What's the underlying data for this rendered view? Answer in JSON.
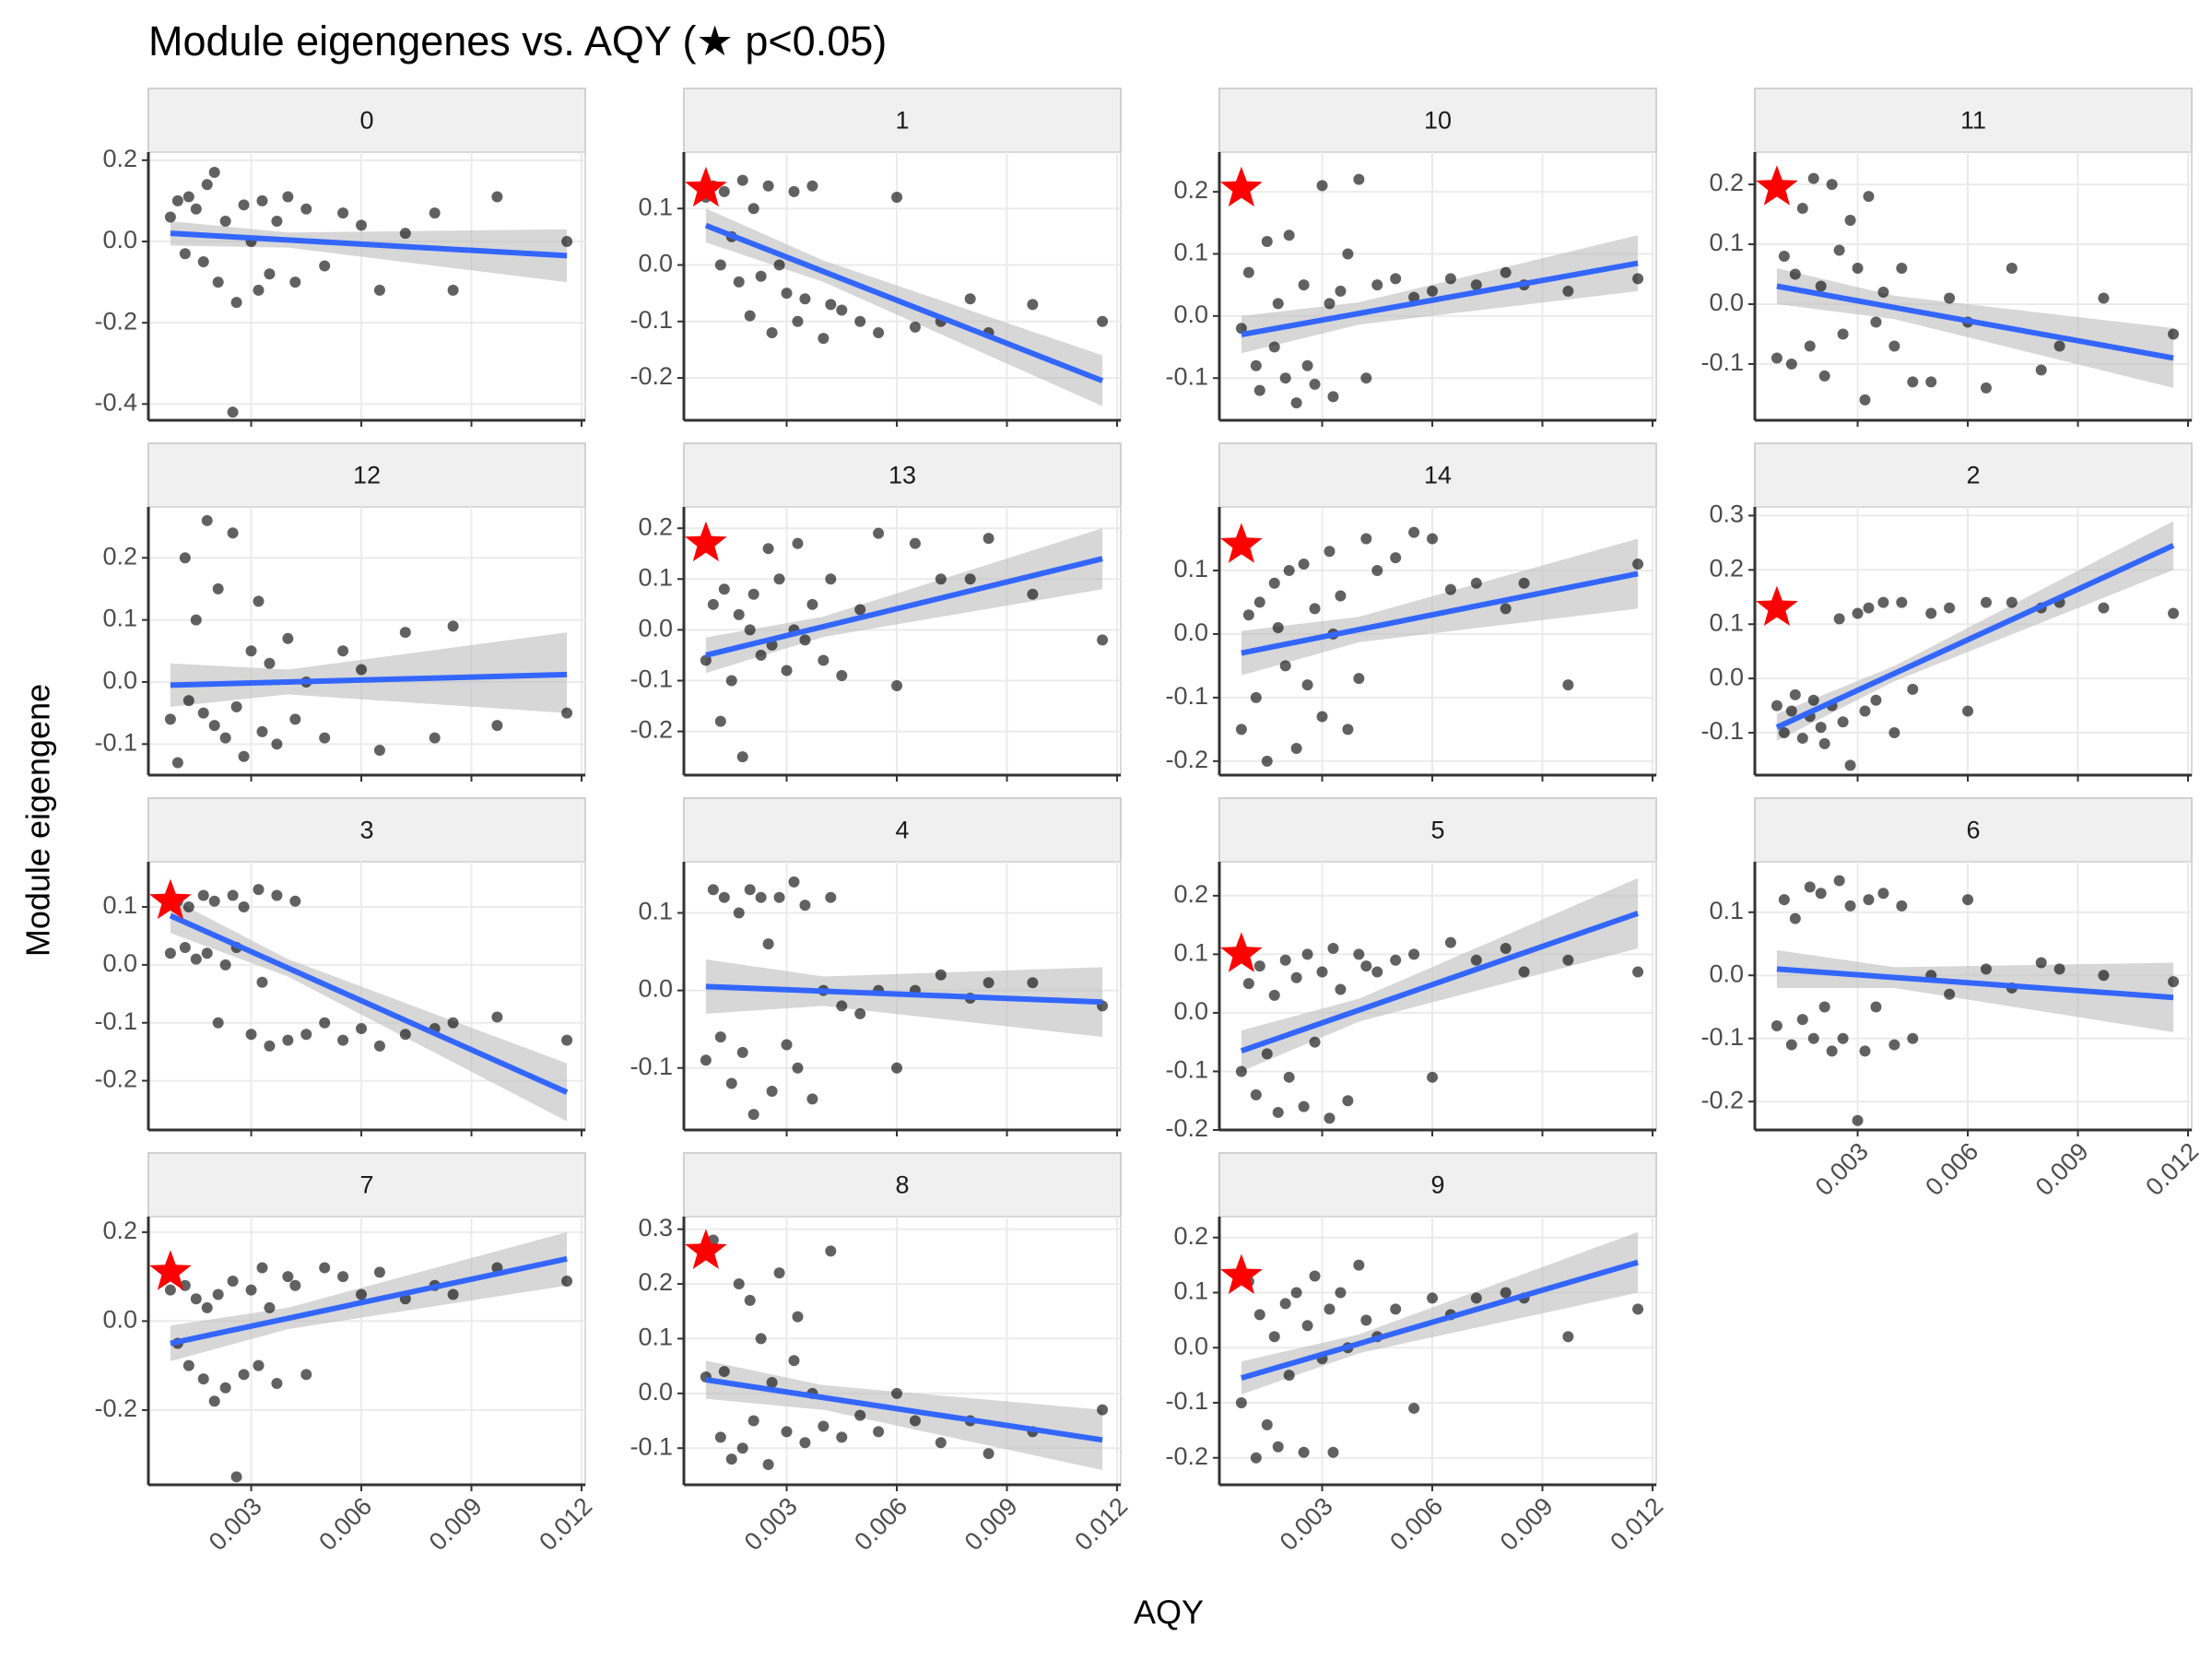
{
  "chart_data": {
    "type": "scatter",
    "title": "Module eigengenes vs. AQY  (★ p<0.05)",
    "xlabel": "AQY",
    "ylabel": "Module eigengene",
    "xlim": [
      0.0002,
      0.0121
    ],
    "xticks": [
      0.003,
      0.006,
      0.009,
      0.012
    ],
    "grid": true,
    "point_color": "#000000",
    "fit_color": "#3366ff",
    "band_color": "#bdbdbd",
    "star_color": "#ff0000",
    "x": [
      0.0008,
      0.001,
      0.0012,
      0.0013,
      0.0015,
      0.0017,
      0.0018,
      0.002,
      0.0021,
      0.0023,
      0.0025,
      0.0026,
      0.0028,
      0.003,
      0.0032,
      0.0033,
      0.0035,
      0.0037,
      0.004,
      0.0042,
      0.0045,
      0.005,
      0.0055,
      0.006,
      0.0065,
      0.0072,
      0.008,
      0.0085,
      0.0097,
      0.0116
    ],
    "fit_x": [
      0.0008,
      0.0116
    ],
    "band_x": [
      0.0008,
      0.004,
      0.0116
    ],
    "star_x": 0.0008,
    "panels": [
      {
        "name": "0",
        "ylim": [
          -0.44,
          0.22
        ],
        "yticks": [
          -0.4,
          -0.2,
          {
            "value": 0,
            "label": "0.0"
          },
          0.2
        ],
        "values": [
          0.06,
          0.1,
          -0.03,
          0.11,
          0.08,
          -0.05,
          0.14,
          0.17,
          -0.1,
          0.05,
          -0.42,
          -0.15,
          0.09,
          0.0,
          -0.12,
          0.1,
          -0.08,
          0.05,
          0.11,
          -0.1,
          0.08,
          -0.06,
          0.07,
          0.04,
          -0.12,
          0.02,
          0.07,
          -0.12,
          0.11,
          0.0
        ],
        "fit": [
          0.02,
          -0.035
        ],
        "band_lower": [
          -0.01,
          -0.015,
          -0.1
        ],
        "band_upper": [
          0.05,
          0.022,
          0.03
        ]
      },
      {
        "name": "1",
        "ylim": [
          -0.275,
          0.2
        ],
        "yticks": [
          -0.2,
          -0.1,
          {
            "value": 0,
            "label": "0.0"
          },
          0.1
        ],
        "values": [
          0.12,
          0.14,
          0.0,
          0.13,
          0.05,
          -0.03,
          0.15,
          -0.09,
          0.1,
          -0.02,
          0.14,
          -0.12,
          0.0,
          -0.05,
          0.13,
          -0.1,
          -0.06,
          0.14,
          -0.13,
          -0.07,
          -0.08,
          -0.1,
          -0.12,
          0.12,
          -0.11,
          -0.1,
          -0.06,
          -0.12,
          -0.07,
          -0.1
        ],
        "fit": [
          0.07,
          -0.205
        ],
        "band_lower": [
          0.04,
          -0.03,
          -0.25
        ],
        "band_upper": [
          0.1,
          0.008,
          -0.16
        ],
        "star": 0.135
      },
      {
        "name": "10",
        "ylim": [
          -0.168,
          0.264
        ],
        "yticks": [
          -0.1,
          {
            "value": 0,
            "label": "0.0"
          },
          0.1,
          0.2
        ],
        "values": [
          -0.02,
          0.07,
          -0.08,
          -0.12,
          0.12,
          -0.05,
          0.02,
          -0.1,
          0.13,
          -0.14,
          0.05,
          -0.08,
          -0.11,
          0.21,
          0.02,
          -0.13,
          0.04,
          0.1,
          0.22,
          -0.1,
          0.05,
          0.06,
          0.03,
          0.04,
          0.06,
          0.05,
          0.07,
          0.05,
          0.04,
          0.06
        ],
        "fit": [
          -0.03,
          0.085
        ],
        "band_lower": [
          -0.06,
          -0.014,
          0.04
        ],
        "band_upper": [
          0.0,
          0.022,
          0.13
        ],
        "star": 0.205
      },
      {
        "name": "11",
        "ylim": [
          -0.194,
          0.254
        ],
        "yticks": [
          -0.1,
          {
            "value": 0,
            "label": "0.0"
          },
          0.1,
          0.2
        ],
        "values": [
          -0.09,
          0.08,
          -0.1,
          0.05,
          0.16,
          -0.07,
          0.21,
          0.03,
          -0.12,
          0.2,
          0.09,
          -0.05,
          0.14,
          0.06,
          -0.16,
          0.18,
          -0.03,
          0.02,
          -0.07,
          0.06,
          -0.13,
          -0.13,
          0.01,
          -0.03,
          -0.14,
          0.06,
          -0.11,
          -0.07,
          0.01,
          -0.05
        ],
        "fit": [
          0.03,
          -0.09
        ],
        "band_lower": [
          0.0,
          -0.025,
          -0.14
        ],
        "band_upper": [
          0.06,
          0.014,
          -0.04
        ],
        "star": 0.195
      },
      {
        "name": "12",
        "ylim": [
          -0.15,
          0.282
        ],
        "yticks": [
          -0.1,
          {
            "value": 0,
            "label": "0.0"
          },
          0.1,
          0.2
        ],
        "values": [
          -0.06,
          -0.13,
          0.2,
          -0.03,
          0.1,
          -0.05,
          0.26,
          -0.07,
          0.15,
          -0.09,
          0.24,
          -0.04,
          -0.12,
          0.05,
          0.13,
          -0.08,
          0.03,
          -0.1,
          0.07,
          -0.06,
          0.0,
          -0.09,
          0.05,
          0.02,
          -0.11,
          0.08,
          -0.09,
          0.09,
          -0.07,
          -0.05
        ],
        "fit": [
          -0.005,
          0.012
        ],
        "band_lower": [
          -0.04,
          -0.02,
          -0.05
        ],
        "band_upper": [
          0.03,
          0.02,
          0.08
        ]
      },
      {
        "name": "13",
        "ylim": [
          -0.286,
          0.242
        ],
        "yticks": [
          -0.2,
          -0.1,
          {
            "value": 0,
            "label": "0.0"
          },
          0.1,
          0.2
        ],
        "values": [
          -0.06,
          0.05,
          -0.18,
          0.08,
          -0.1,
          0.03,
          -0.25,
          0.0,
          0.07,
          -0.05,
          0.16,
          -0.03,
          0.1,
          -0.08,
          0.0,
          0.17,
          -0.02,
          0.05,
          -0.06,
          0.1,
          -0.09,
          0.04,
          0.19,
          -0.11,
          0.17,
          0.1,
          0.1,
          0.18,
          0.07,
          -0.02
        ],
        "fit": [
          -0.05,
          0.14
        ],
        "band_lower": [
          -0.085,
          -0.014,
          0.08
        ],
        "band_upper": [
          -0.015,
          0.026,
          0.2
        ],
        "star": 0.17
      },
      {
        "name": "14",
        "ylim": [
          -0.222,
          0.2
        ],
        "yticks": [
          -0.2,
          -0.1,
          {
            "value": 0,
            "label": "0.0"
          },
          0.1
        ],
        "values": [
          -0.15,
          0.03,
          -0.1,
          0.05,
          -0.2,
          0.08,
          0.01,
          -0.05,
          0.1,
          -0.18,
          0.11,
          -0.08,
          0.04,
          -0.13,
          0.13,
          0.0,
          0.06,
          -0.15,
          -0.07,
          0.15,
          0.1,
          0.12,
          0.16,
          0.15,
          0.07,
          0.08,
          0.04,
          0.08,
          -0.08,
          0.11
        ],
        "fit": [
          -0.03,
          0.095
        ],
        "band_lower": [
          -0.065,
          -0.013,
          0.04
        ],
        "band_upper": [
          0.005,
          0.027,
          0.15
        ],
        "star": 0.14
      },
      {
        "name": "2",
        "ylim": [
          -0.178,
          0.316
        ],
        "yticks": [
          -0.1,
          {
            "value": 0,
            "label": "0.0"
          },
          0.1,
          0.2,
          0.3
        ],
        "values": [
          -0.05,
          -0.1,
          -0.06,
          -0.03,
          -0.11,
          -0.07,
          -0.04,
          -0.09,
          -0.12,
          -0.05,
          0.11,
          -0.08,
          -0.16,
          0.12,
          -0.06,
          0.13,
          -0.04,
          0.14,
          -0.1,
          0.14,
          -0.02,
          0.12,
          0.13,
          -0.06,
          0.14,
          0.14,
          0.13,
          0.14,
          0.13,
          0.12
        ],
        "fit": [
          -0.09,
          0.245
        ],
        "band_lower": [
          -0.115,
          -0.005,
          0.2
        ],
        "band_upper": [
          -0.065,
          0.023,
          0.29
        ],
        "star": 0.13
      },
      {
        "name": "3",
        "ylim": [
          -0.285,
          0.178
        ],
        "yticks": [
          -0.2,
          -0.1,
          {
            "value": 0,
            "label": "0.0"
          },
          0.1
        ],
        "values": [
          0.02,
          0.11,
          0.03,
          0.1,
          0.01,
          0.12,
          0.02,
          0.11,
          -0.1,
          0.0,
          0.12,
          0.03,
          0.1,
          -0.12,
          0.13,
          -0.03,
          -0.14,
          0.12,
          -0.13,
          0.11,
          -0.12,
          -0.1,
          -0.13,
          -0.11,
          -0.14,
          -0.12,
          -0.11,
          -0.1,
          -0.09,
          -0.13
        ],
        "fit": [
          0.085,
          -0.22
        ],
        "band_lower": [
          0.055,
          -0.02,
          -0.27
        ],
        "band_upper": [
          0.115,
          0.01,
          -0.17
        ],
        "star": 0.11
      },
      {
        "name": "4",
        "ylim": [
          -0.18,
          0.166
        ],
        "yticks": [
          -0.1,
          {
            "value": 0,
            "label": "0.0"
          },
          0.1
        ],
        "values": [
          -0.09,
          0.13,
          -0.06,
          0.12,
          -0.12,
          0.1,
          -0.08,
          0.13,
          -0.16,
          0.12,
          0.06,
          -0.13,
          0.12,
          -0.07,
          0.14,
          -0.1,
          0.11,
          -0.14,
          0.0,
          0.12,
          -0.02,
          -0.03,
          0.0,
          -0.1,
          0.0,
          0.02,
          -0.01,
          0.01,
          0.01,
          -0.02
        ],
        "fit": [
          0.005,
          -0.015
        ],
        "band_lower": [
          -0.03,
          -0.02,
          -0.06
        ],
        "band_upper": [
          0.04,
          0.018,
          0.03
        ]
      },
      {
        "name": "5",
        "ylim": [
          -0.2,
          0.258
        ],
        "yticks": [
          -0.2,
          -0.1,
          {
            "value": 0,
            "label": "0.0"
          },
          0.1,
          0.2
        ],
        "values": [
          -0.1,
          0.05,
          -0.14,
          0.08,
          -0.07,
          0.03,
          -0.17,
          0.09,
          -0.11,
          0.06,
          -0.16,
          0.1,
          -0.05,
          0.07,
          -0.18,
          0.11,
          0.04,
          -0.15,
          0.1,
          0.08,
          0.07,
          0.09,
          0.1,
          -0.11,
          0.12,
          0.09,
          0.11,
          0.07,
          0.09,
          0.07
        ],
        "fit": [
          -0.065,
          0.17
        ],
        "band_lower": [
          -0.1,
          -0.015,
          0.11
        ],
        "band_upper": [
          -0.03,
          0.024,
          0.23
        ],
        "star": 0.1
      },
      {
        "name": "6",
        "ylim": [
          -0.245,
          0.18
        ],
        "yticks": [
          -0.2,
          -0.1,
          {
            "value": 0,
            "label": "0.0"
          },
          0.1
        ],
        "values": [
          -0.08,
          0.12,
          -0.11,
          0.09,
          -0.07,
          0.14,
          -0.1,
          0.13,
          -0.05,
          -0.12,
          0.15,
          -0.1,
          0.11,
          -0.23,
          -0.12,
          0.12,
          -0.05,
          0.13,
          -0.11,
          0.11,
          -0.1,
          0.0,
          -0.03,
          0.12,
          0.01,
          -0.02,
          0.02,
          0.01,
          0.0,
          -0.01
        ],
        "fit": [
          0.01,
          -0.035
        ],
        "band_lower": [
          -0.02,
          -0.02,
          -0.09
        ],
        "band_upper": [
          0.04,
          0.013,
          0.02
        ]
      },
      {
        "name": "7",
        "ylim": [
          -0.368,
          0.235
        ],
        "yticks": [
          -0.2,
          {
            "value": 0,
            "label": "0.0"
          },
          0.2
        ],
        "values": [
          0.07,
          -0.05,
          0.08,
          -0.1,
          0.05,
          -0.13,
          0.03,
          -0.18,
          0.06,
          -0.15,
          0.09,
          -0.35,
          -0.12,
          0.07,
          -0.1,
          0.12,
          0.03,
          -0.14,
          0.1,
          0.08,
          -0.12,
          0.12,
          0.1,
          0.06,
          0.11,
          0.05,
          0.08,
          0.06,
          0.12,
          0.09
        ],
        "fit": [
          -0.05,
          0.14
        ],
        "band_lower": [
          -0.09,
          -0.018,
          0.08
        ],
        "band_upper": [
          -0.01,
          0.03,
          0.2
        ],
        "star": 0.11
      },
      {
        "name": "8",
        "ylim": [
          -0.167,
          0.323
        ],
        "yticks": [
          -0.1,
          {
            "value": 0,
            "label": "0.0"
          },
          0.1,
          0.2,
          0.3
        ],
        "values": [
          0.03,
          0.28,
          -0.08,
          0.04,
          -0.12,
          0.2,
          -0.1,
          0.17,
          -0.05,
          0.1,
          -0.13,
          0.02,
          0.22,
          -0.07,
          0.06,
          0.14,
          -0.09,
          0.0,
          -0.06,
          0.26,
          -0.08,
          -0.04,
          -0.07,
          0.0,
          -0.05,
          -0.09,
          -0.05,
          -0.11,
          -0.07,
          -0.03
        ],
        "fit": [
          0.025,
          -0.085
        ],
        "band_lower": [
          -0.01,
          -0.03,
          -0.14
        ],
        "band_upper": [
          0.06,
          0.015,
          -0.03
        ],
        "star": 0.26
      },
      {
        "name": "9",
        "ylim": [
          -0.249,
          0.238
        ],
        "yticks": [
          -0.2,
          -0.1,
          {
            "value": 0,
            "label": "0.0"
          },
          0.1,
          0.2
        ],
        "values": [
          -0.1,
          0.12,
          -0.2,
          0.06,
          -0.14,
          0.02,
          -0.18,
          0.08,
          -0.05,
          0.1,
          -0.19,
          0.04,
          0.13,
          -0.02,
          0.07,
          -0.19,
          0.1,
          0.0,
          0.15,
          0.05,
          0.02,
          0.07,
          -0.11,
          0.09,
          0.06,
          0.09,
          0.1,
          0.09,
          0.02,
          0.07
        ],
        "fit": [
          -0.055,
          0.155
        ],
        "band_lower": [
          -0.085,
          -0.01,
          0.1
        ],
        "band_upper": [
          -0.025,
          0.024,
          0.21
        ],
        "star": 0.13
      }
    ]
  }
}
